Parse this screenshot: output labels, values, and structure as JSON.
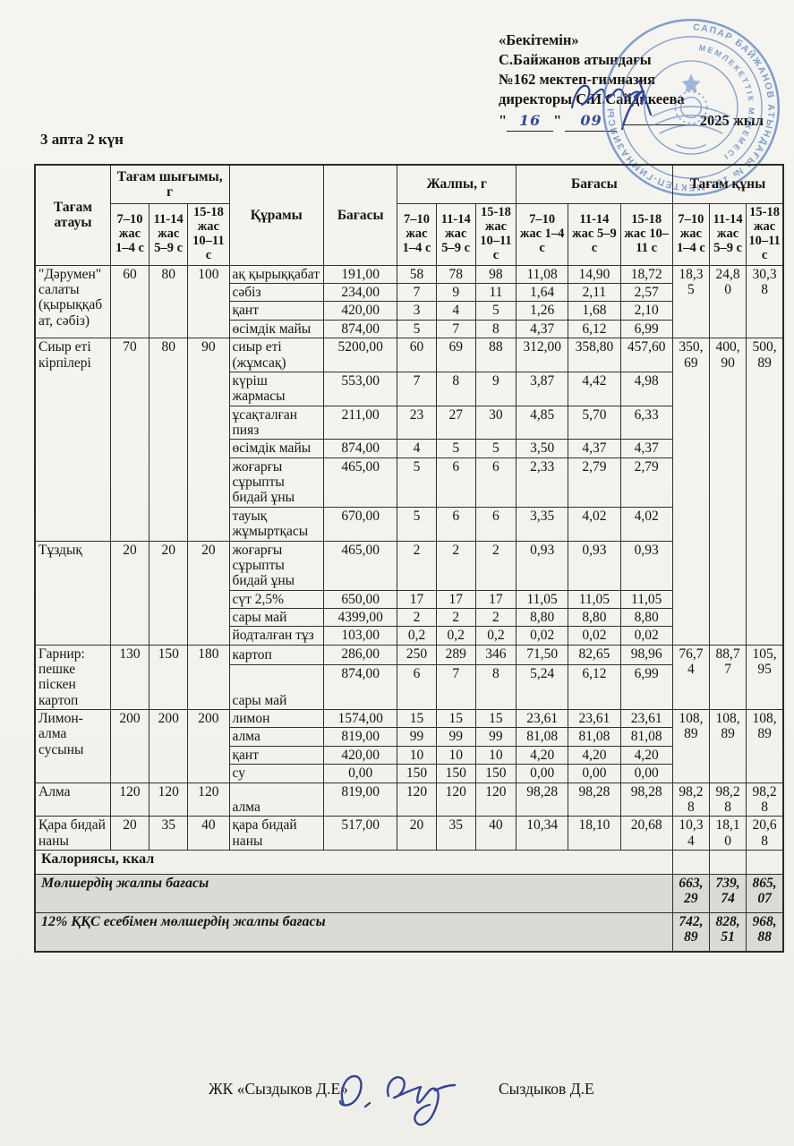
{
  "document": {
    "day_label": "3 апта 2 күн",
    "approval": {
      "line1": "«Бекітемін»",
      "line2": "С.Байжанов атындағы",
      "line3": "№162 мектеп-гимназия",
      "director_label": "директоры",
      "director_name": "С.И.Сайдикеева",
      "date_day": "16",
      "date_month": "09",
      "year_label": "2025 жыл"
    },
    "stamp": {
      "ring_text": "САПАР БАЙЖАНОВ АТЫНДАҒЫ № 162 МЕКТЕП-ГИМНАЗИЯСЫ",
      "inner_ring_text": "МЕМЛЕКЕТТІК МЕКЕМЕСІ",
      "color": "#5d86c6"
    },
    "signoff": {
      "company": "ЖК «Сыздыков Д.Е»",
      "name": "Сыздыков Д.Е"
    }
  },
  "table": {
    "header": {
      "dish": "Тағам атауы",
      "output": "Тағам шығымы, г",
      "composition": "Құрамы",
      "price": "Бағасы",
      "total_g": "Жалпы, г",
      "price_total": "Бағасы",
      "dish_cost": "Тағам құны",
      "age_groups": [
        "7–10 жас 1–4 с",
        "11-14 жас 5–9 с",
        "15-18 жас 10–11 с"
      ]
    },
    "groups": [
      {
        "name": "\"Дәрумен\" салаты (қырыққабат, сәбіз)",
        "weights": [
          "60",
          "80",
          "100"
        ],
        "cost": [
          "18,35",
          "24,80",
          "30,38"
        ],
        "rows": [
          {
            "ingredient": "ақ қырыққабат",
            "price": "191,00",
            "qty": [
              "58",
              "78",
              "98"
            ],
            "sum": [
              "11,08",
              "14,90",
              "18,72"
            ]
          },
          {
            "ingredient": "сәбіз",
            "price": "234,00",
            "qty": [
              "7",
              "9",
              "11"
            ],
            "sum": [
              "1,64",
              "2,11",
              "2,57"
            ]
          },
          {
            "ingredient": "қант",
            "price": "420,00",
            "qty": [
              "3",
              "4",
              "5"
            ],
            "sum": [
              "1,26",
              "1,68",
              "2,10"
            ]
          },
          {
            "ingredient": "өсімдік майы",
            "price": "874,00",
            "qty": [
              "5",
              "7",
              "8"
            ],
            "sum": [
              "4,37",
              "6,12",
              "6,99"
            ]
          }
        ]
      },
      {
        "name": "Сиыр еті кірпілері",
        "weights": [
          "70",
          "80",
          "90"
        ],
        "cost": [
          "350,69",
          "400,90",
          "500,89"
        ],
        "cost_merge_next": true,
        "rows": [
          {
            "ingredient": "сиыр еті (жұмсақ)",
            "price": "5200,00",
            "qty": [
              "60",
              "69",
              "88"
            ],
            "sum": [
              "312,00",
              "358,80",
              "457,60"
            ]
          },
          {
            "ingredient": "күріш жармасы",
            "price": "553,00",
            "qty": [
              "7",
              "8",
              "9"
            ],
            "sum": [
              "3,87",
              "4,42",
              "4,98"
            ]
          },
          {
            "ingredient": "ұсақталған пияз",
            "price": "211,00",
            "qty": [
              "23",
              "27",
              "30"
            ],
            "sum": [
              "4,85",
              "5,70",
              "6,33"
            ]
          },
          {
            "ingredient": "өсімдік майы",
            "price": "874,00",
            "qty": [
              "4",
              "5",
              "5"
            ],
            "sum": [
              "3,50",
              "4,37",
              "4,37"
            ]
          },
          {
            "ingredient": "жоғарғы сұрыпты бидай ұны",
            "price": "465,00",
            "qty": [
              "5",
              "6",
              "6"
            ],
            "sum": [
              "2,33",
              "2,79",
              "2,79"
            ]
          },
          {
            "ingredient": "тауық жұмыртқасы",
            "price": "670,00",
            "qty": [
              "5",
              "6",
              "6"
            ],
            "sum": [
              "3,35",
              "4,02",
              "4,02"
            ]
          }
        ]
      },
      {
        "name": "Тұздық",
        "weights": [
          "20",
          "20",
          "20"
        ],
        "cost": [],
        "cost_merged": true,
        "rows": [
          {
            "ingredient": "жоғарғы сұрыпты бидай ұны",
            "price": "465,00",
            "qty": [
              "2",
              "2",
              "2"
            ],
            "sum": [
              "0,93",
              "0,93",
              "0,93"
            ]
          },
          {
            "ingredient": "сүт 2,5%",
            "price": "650,00",
            "qty": [
              "17",
              "17",
              "17"
            ],
            "sum": [
              "11,05",
              "11,05",
              "11,05"
            ]
          },
          {
            "ingredient": "сары май",
            "price": "4399,00",
            "qty": [
              "2",
              "2",
              "2"
            ],
            "sum": [
              "8,80",
              "8,80",
              "8,80"
            ]
          },
          {
            "ingredient": "йодталған тұз",
            "price": "103,00",
            "qty": [
              "0,2",
              "0,2",
              "0,2"
            ],
            "sum": [
              "0,02",
              "0,02",
              "0,02"
            ]
          }
        ]
      },
      {
        "name": "Гарнир: пешке піскен картоп",
        "weights": [
          "130",
          "150",
          "180"
        ],
        "cost": [
          "76,74",
          "88,77",
          "105,95"
        ],
        "rows": [
          {
            "ingredient": "картоп",
            "price": "286,00",
            "qty": [
              "250",
              "289",
              "346"
            ],
            "sum": [
              "71,50",
              "82,65",
              "98,96"
            ],
            "va": "m"
          },
          {
            "ingredient": "сары май",
            "price": "874,00",
            "qty": [
              "6",
              "7",
              "8"
            ],
            "sum": [
              "5,24",
              "6,12",
              "6,99"
            ],
            "va": "b",
            "tall": true
          }
        ]
      },
      {
        "name": "Лимон-алма сусыны",
        "weights": [
          "200",
          "200",
          "200"
        ],
        "cost": [
          "108,89",
          "108,89",
          "108,89"
        ],
        "rows": [
          {
            "ingredient": "лимон",
            "price": "1574,00",
            "qty": [
              "15",
              "15",
              "15"
            ],
            "sum": [
              "23,61",
              "23,61",
              "23,61"
            ]
          },
          {
            "ingredient": "алма",
            "price": "819,00",
            "qty": [
              "99",
              "99",
              "99"
            ],
            "sum": [
              "81,08",
              "81,08",
              "81,08"
            ]
          },
          {
            "ingredient": "қант",
            "price": "420,00",
            "qty": [
              "10",
              "10",
              "10"
            ],
            "sum": [
              "4,20",
              "4,20",
              "4,20"
            ]
          },
          {
            "ingredient": "су",
            "price": "0,00",
            "qty": [
              "150",
              "150",
              "150"
            ],
            "sum": [
              "0,00",
              "0,00",
              "0,00"
            ]
          }
        ]
      },
      {
        "name": "Алма",
        "weights": [
          "120",
          "120",
          "120"
        ],
        "cost": [
          "98,28",
          "98,28",
          "98,28"
        ],
        "rows": [
          {
            "ingredient": "алма",
            "price": "819,00",
            "qty": [
              "120",
              "120",
              "120"
            ],
            "sum": [
              "98,28",
              "98,28",
              "98,28"
            ],
            "va": "b"
          }
        ]
      },
      {
        "name": "Қара бидай наны",
        "weights": [
          "20",
          "35",
          "40"
        ],
        "cost": [
          "10,34",
          "18,10",
          "20,68"
        ],
        "rows": [
          {
            "ingredient": "қара бидай наны",
            "price": "517,00",
            "qty": [
              "20",
              "35",
              "40"
            ],
            "sum": [
              "10,34",
              "18,10",
              "20,68"
            ],
            "va": "b"
          }
        ]
      }
    ],
    "summary_rows": [
      {
        "label": "Калориясы, ккал",
        "values": [
          "",
          "",
          ""
        ],
        "style": "plain"
      },
      {
        "label": "Мөлшердің жалпы бағасы",
        "values": [
          "663,29",
          "739,74",
          "865,07"
        ],
        "style": "shaded"
      },
      {
        "label": "12% ҚҚС есебімен мөлшердің жалпы бағасы",
        "values": [
          "742,89",
          "828,51",
          "968,88"
        ],
        "style": "shaded"
      }
    ]
  }
}
